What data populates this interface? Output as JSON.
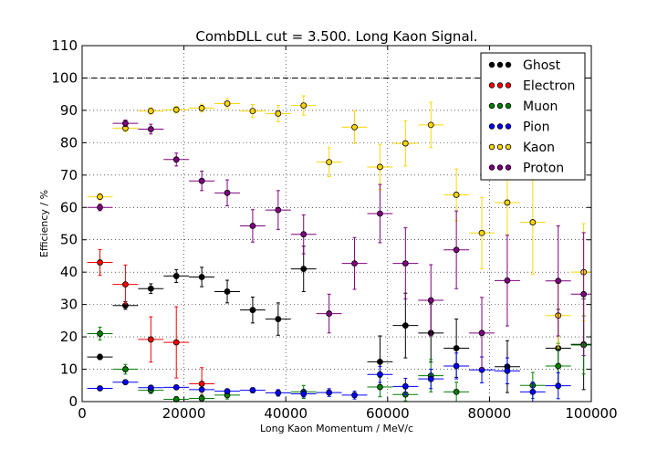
{
  "chart_data": {
    "type": "scatter",
    "title": "CombDLL cut = 3.500. Long Kaon Signal.",
    "xlabel": "Long Kaon Momentum / MeV/c",
    "ylabel": "Efficiency / %",
    "xlim": [
      0,
      100000
    ],
    "ylim": [
      0,
      110
    ],
    "x_ticks": [
      0,
      20000,
      40000,
      60000,
      80000,
      100000
    ],
    "y_ticks": [
      0,
      10,
      20,
      30,
      40,
      50,
      60,
      70,
      80,
      90,
      100,
      110
    ],
    "x_tick_labels": [
      "0",
      "20000",
      "40000",
      "60000",
      "80000",
      "100000"
    ],
    "y_tick_labels": [
      "0",
      "10",
      "20",
      "30",
      "40",
      "50",
      "60",
      "70",
      "80",
      "90",
      "100",
      "110"
    ],
    "reference_line": 100,
    "grid": true,
    "legend_position": "top-right",
    "x_bin_half_width": 2500,
    "x": [
      3500,
      8500,
      13500,
      18500,
      23500,
      28500,
      33500,
      38500,
      43500,
      48500,
      53500,
      58500,
      63500,
      68500,
      73500,
      78500,
      83500,
      88500,
      93500,
      98500
    ],
    "series": [
      {
        "name": "Ghost",
        "color": "#000000",
        "values": [
          13.8,
          29.7,
          34.9,
          38.8,
          38.5,
          34.0,
          28.3,
          25.5,
          41.0,
          null,
          null,
          12.3,
          23.5,
          21.2,
          16.5,
          null,
          10.8,
          null,
          16.5,
          17.7
        ],
        "errors": [
          0.8,
          1.2,
          1.5,
          2.0,
          3.0,
          3.5,
          4.0,
          5.0,
          7.0,
          null,
          null,
          8.0,
          10.0,
          9.0,
          9.0,
          null,
          8.0,
          null,
          12.0,
          14.0
        ]
      },
      {
        "name": "Electron",
        "color": "#ff0000",
        "values": [
          43.0,
          36.2,
          19.2,
          18.3,
          5.5,
          null,
          null,
          null,
          null,
          null,
          null,
          null,
          null,
          null,
          null,
          null,
          null,
          null,
          null,
          null
        ],
        "errors": [
          4.0,
          6.0,
          7.0,
          11.0,
          5.0,
          null,
          null,
          null,
          null,
          null,
          null,
          null,
          null,
          null,
          null,
          null,
          null,
          null,
          null,
          null
        ]
      },
      {
        "name": "Muon",
        "color": "#008000",
        "values": [
          21.0,
          10.0,
          3.5,
          0.7,
          1.0,
          2.0,
          null,
          null,
          3.0,
          null,
          null,
          4.5,
          2.2,
          8.0,
          3.0,
          null,
          null,
          5.0,
          11.0,
          17.5
        ],
        "errors": [
          2.0,
          1.5,
          1.0,
          0.8,
          1.0,
          1.2,
          null,
          null,
          2.0,
          null,
          null,
          3.0,
          2.0,
          5.0,
          3.0,
          null,
          null,
          4.0,
          7.0,
          9.0
        ]
      },
      {
        "name": "Pion",
        "color": "#0000ff",
        "values": [
          4.1,
          6.0,
          4.3,
          4.4,
          3.7,
          3.2,
          3.5,
          2.7,
          2.4,
          2.8,
          2.0,
          8.4,
          4.7,
          7.0,
          11.0,
          9.8,
          9.5,
          3.0,
          4.9,
          null
        ],
        "errors": [
          0.3,
          0.4,
          0.5,
          0.6,
          0.6,
          0.7,
          0.8,
          1.0,
          1.0,
          1.2,
          1.2,
          2.5,
          2.5,
          3.0,
          4.0,
          4.0,
          4.0,
          3.0,
          4.0,
          null
        ]
      },
      {
        "name": "Kaon",
        "color": "#ffd700",
        "values": [
          63.3,
          84.5,
          89.8,
          90.2,
          90.7,
          92.1,
          89.8,
          89.0,
          91.5,
          74.0,
          84.8,
          72.5,
          79.8,
          85.5,
          63.9,
          52.1,
          61.5,
          55.4,
          26.6,
          40.0
        ],
        "errors": [
          1.0,
          1.0,
          1.0,
          1.0,
          1.2,
          1.5,
          2.0,
          2.5,
          3.0,
          4.5,
          5.0,
          7.0,
          7.0,
          7.0,
          8.0,
          11.0,
          10.0,
          16.0,
          10.0,
          15.0
        ]
      },
      {
        "name": "Proton",
        "color": "#800080",
        "values": [
          60.0,
          86.0,
          84.2,
          74.8,
          68.2,
          64.5,
          54.3,
          59.2,
          51.7,
          27.2,
          42.7,
          58.1,
          42.7,
          31.3,
          46.9,
          21.2,
          37.4,
          null,
          37.3,
          33.2
        ],
        "errors": [
          1.0,
          1.0,
          1.5,
          2.0,
          3.0,
          4.0,
          5.0,
          6.0,
          6.0,
          6.0,
          8.0,
          9.0,
          11.0,
          11.0,
          12.0,
          11.0,
          14.0,
          null,
          17.0,
          19.0
        ]
      }
    ]
  }
}
